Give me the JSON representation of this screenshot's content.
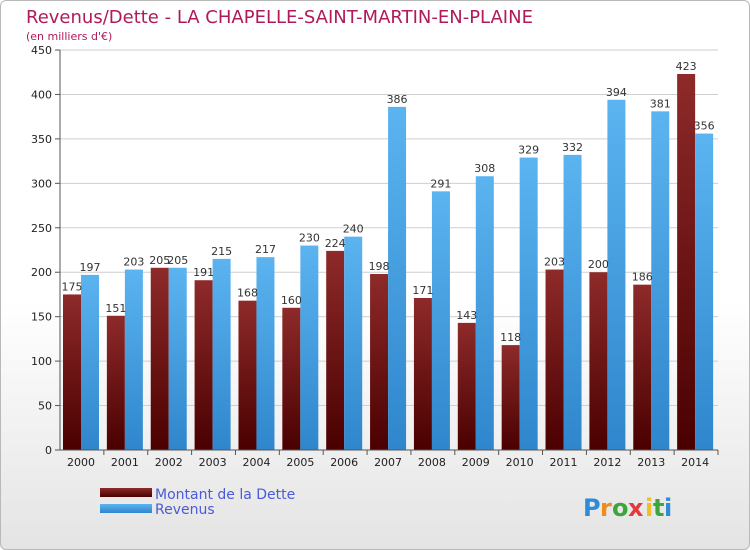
{
  "header": {
    "title": "Revenus/Dette - LA CHAPELLE-SAINT-MARTIN-EN-PLAINE",
    "subtitle": "(en milliers d'€)"
  },
  "chart_data": {
    "type": "bar",
    "title": "Revenus/Dette - LA CHAPELLE-SAINT-MARTIN-EN-PLAINE",
    "subtitle": "(en milliers d'€)",
    "xlabel": "",
    "ylabel": "",
    "categories": [
      "2000",
      "2001",
      "2002",
      "2003",
      "2004",
      "2005",
      "2006",
      "2007",
      "2008",
      "2009",
      "2010",
      "2011",
      "2012",
      "2013",
      "2014"
    ],
    "series": [
      {
        "name": "Montant de la Dette",
        "values": [
          175,
          151,
          205,
          191,
          168,
          160,
          224,
          198,
          171,
          143,
          118,
          203,
          200,
          186,
          423
        ],
        "color": "#7a1d1d"
      },
      {
        "name": "Revenus",
        "values": [
          197,
          203,
          205,
          215,
          217,
          230,
          240,
          386,
          291,
          308,
          329,
          332,
          394,
          381,
          356
        ],
        "color": "#4aa6e8"
      }
    ],
    "ylim": [
      0,
      450
    ],
    "yticks": [
      0,
      50,
      100,
      150,
      200,
      250,
      300,
      350,
      400,
      450
    ],
    "grid": true,
    "legend": "bottom-left"
  },
  "legend": {
    "items": [
      "Montant de la Dette",
      "Revenus"
    ]
  },
  "logo": {
    "letters": [
      "P",
      "r",
      "o",
      "x",
      "i",
      "t",
      "i"
    ],
    "colors": [
      "#2e8bd8",
      "#f28a1c",
      "#3ca63c",
      "#e23b3b",
      "#f0c020",
      "#3ca63c",
      "#2e8bd8"
    ]
  }
}
